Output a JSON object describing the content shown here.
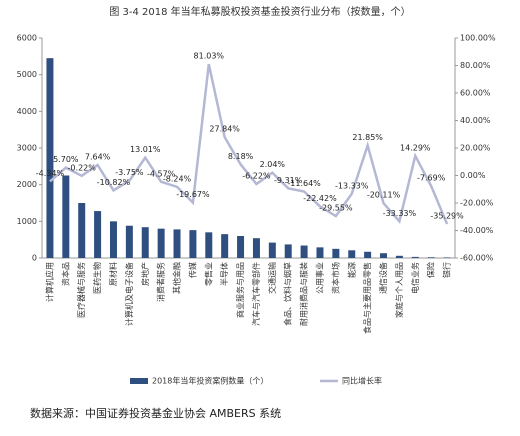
{
  "chart_data": {
    "type": "combo",
    "title": "图 3-4 2018 年当年私募股权投资基金投资行业分布（按数量，个）",
    "categories": [
      "计算机应用",
      "资本品",
      "医疗器械与服务",
      "医药生物",
      "原材料",
      "计算机及电子设备",
      "房地产",
      "消费者服务",
      "其他金融",
      "传媒",
      "零售业",
      "半导体",
      "商业服务与用品",
      "汽车与汽车零部件",
      "交通运输",
      "食品、饮料与烟草",
      "耐用消费品与服装",
      "公用事业",
      "资本市场",
      "能源",
      "食品与主要用品零售",
      "通信设备",
      "家庭与个人用品",
      "电信业务",
      "保险",
      "银行"
    ],
    "series": [
      {
        "name": "2018年当年投资案例数量（个）",
        "type": "bar",
        "color": "#2e4f7f",
        "values": [
          5450,
          2250,
          1500,
          1280,
          1000,
          880,
          840,
          800,
          780,
          760,
          700,
          650,
          600,
          540,
          420,
          370,
          340,
          290,
          250,
          210,
          170,
          130,
          60,
          30,
          20,
          15
        ]
      },
      {
        "name": "同比增长率",
        "type": "line",
        "axis": "y2",
        "color": "#b4b8d4",
        "values": [
          -4.34,
          5.7,
          -0.22,
          7.64,
          -10.82,
          -3.75,
          13.01,
          -4.57,
          -8.24,
          -19.67,
          81.03,
          27.84,
          8.18,
          -6.22,
          2.04,
          -9.31,
          -11.64,
          -22.42,
          -29.55,
          -13.33,
          21.85,
          -20.11,
          -33.33,
          14.29,
          -7.69,
          -35.29
        ],
        "value_labels": [
          "-4.34%",
          "5.70%",
          "-0.22%",
          "7.64%",
          "-10.82%",
          "-3.75%",
          "13.01%",
          "-4.57%",
          "-8.24%",
          "-19.67%",
          "81.03%",
          "27.84%",
          "8.18%",
          "-6.22%",
          "2.04%",
          "-9.31%",
          "-11.64%",
          "-22.42%",
          "-29.55%",
          "-13.33%",
          "21.85%",
          "-20.11%",
          "-33.33%",
          "14.29%",
          "-7.69%",
          "-35.29%"
        ]
      }
    ],
    "ylim": [
      0,
      6000
    ],
    "yticks": [
      0,
      1000,
      2000,
      3000,
      4000,
      5000,
      6000
    ],
    "y2lim": [
      -60,
      100
    ],
    "y2ticks": [
      {
        "value": -60,
        "label": "-60.00%"
      },
      {
        "value": -40,
        "label": "-40.00%"
      },
      {
        "value": -20,
        "label": "-20.00%"
      },
      {
        "value": 0,
        "label": "0.00%"
      },
      {
        "value": 20,
        "label": "20.00%"
      },
      {
        "value": 40,
        "label": "40.00%"
      },
      {
        "value": 60,
        "label": "60.00%"
      },
      {
        "value": 80,
        "label": "80.00%"
      },
      {
        "value": 100,
        "label": "100.00%"
      }
    ],
    "legend": "bottom",
    "source": "数据来源：中国证券投资基金业协会 AMBERS 系统"
  }
}
